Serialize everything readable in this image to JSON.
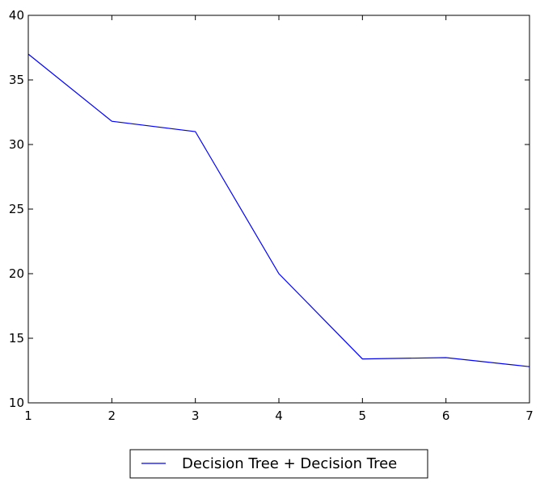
{
  "chart_data": {
    "type": "line",
    "title": "",
    "xlabel": "",
    "ylabel": "",
    "x": [
      1,
      2,
      3,
      4,
      5,
      6,
      7
    ],
    "xlim": [
      1,
      7
    ],
    "ylim": [
      10,
      40
    ],
    "xticks": [
      "1",
      "2",
      "3",
      "4",
      "5",
      "6",
      "7"
    ],
    "yticks": [
      "10",
      "15",
      "20",
      "25",
      "30",
      "35",
      "40"
    ],
    "grid": false,
    "legend_position": "below",
    "series": [
      {
        "name": "Decision Tree + Decision Tree",
        "color": "#0000ff",
        "values": [
          37.0,
          31.8,
          31.0,
          20.0,
          13.4,
          13.5,
          12.8
        ]
      }
    ]
  }
}
